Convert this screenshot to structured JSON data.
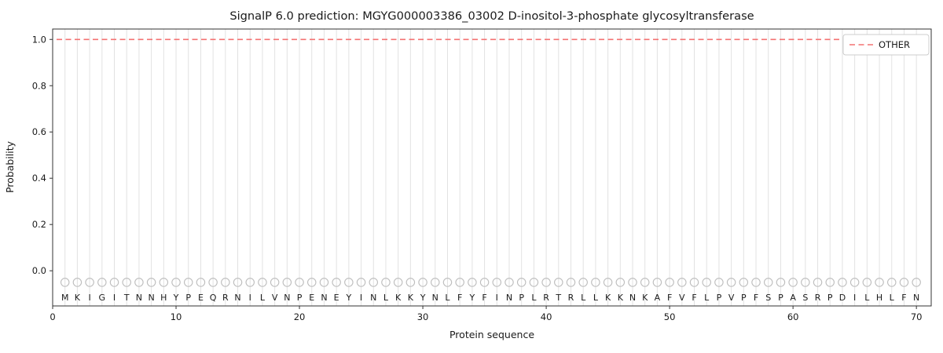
{
  "chart_data": {
    "type": "line",
    "title": "SignalP 6.0 prediction: MGYG000003386_03002 D-inositol-3-phosphate glycosyltransferase",
    "xlabel": "Protein sequence",
    "ylabel": "Probability",
    "xlim": [
      0,
      71.2
    ],
    "ylim": [
      -0.152,
      1.045
    ],
    "xticks": [
      0,
      10,
      20,
      30,
      40,
      50,
      60,
      70
    ],
    "yticks": [
      0.0,
      0.2,
      0.4,
      0.6,
      0.8,
      1.0
    ],
    "grid": "vertical-line-per-residue",
    "legend": {
      "position": "upper-right",
      "entries": [
        {
          "label": "OTHER",
          "color": "#f47272",
          "dash": true
        }
      ]
    },
    "series": [
      {
        "name": "OTHER",
        "style": "dashed",
        "color": "#f47272",
        "constant_y": 1.0,
        "x_start": 1,
        "x_end": 70
      }
    ],
    "sequence": [
      "M",
      "K",
      "I",
      "G",
      "I",
      "T",
      "N",
      "N",
      "H",
      "Y",
      "P",
      "E",
      "Q",
      "R",
      "N",
      "I",
      "L",
      "V",
      "N",
      "P",
      "E",
      "N",
      "E",
      "Y",
      "I",
      "N",
      "L",
      "K",
      "K",
      "Y",
      "N",
      "L",
      "F",
      "Y",
      "F",
      "I",
      "N",
      "P",
      "L",
      "R",
      "T",
      "R",
      "L",
      "L",
      "K",
      "K",
      "N",
      "K",
      "A",
      "F",
      "V",
      "F",
      "L",
      "P",
      "V",
      "P",
      "F",
      "S",
      "P",
      "A",
      "S",
      "R",
      "P",
      "D",
      "I",
      "L",
      "H",
      "L",
      "F",
      "N"
    ],
    "residue_markers": {
      "shape": "circle",
      "y": -0.05,
      "color": "#bdbdbd"
    },
    "sequence_label_y": -0.115
  }
}
